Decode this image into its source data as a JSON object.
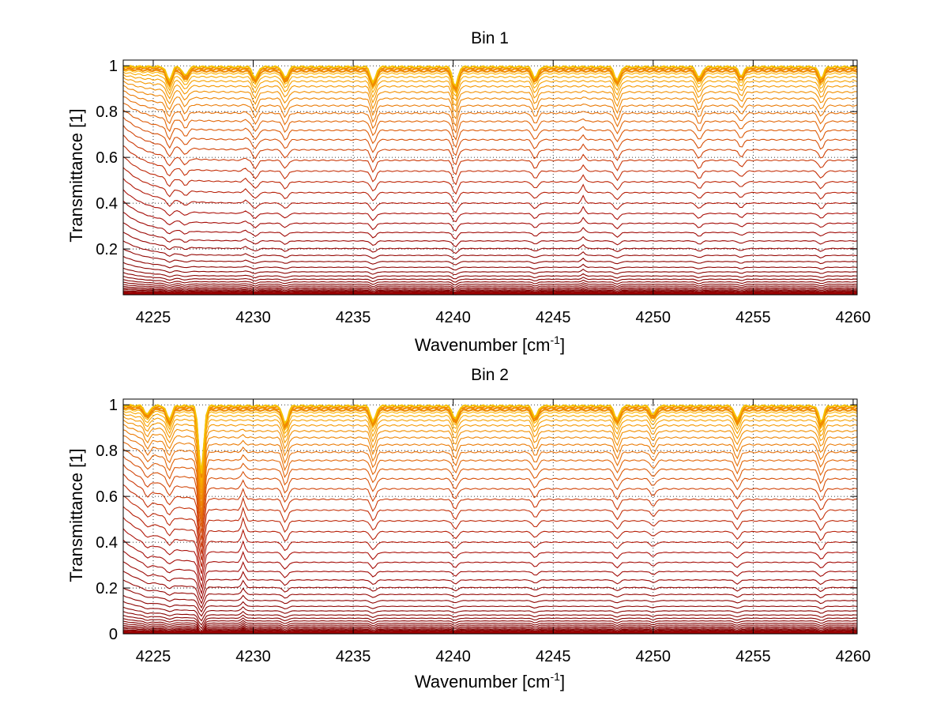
{
  "chart_data": [
    {
      "type": "line",
      "title": "Bin 1",
      "xlabel": "Wavenumber [cm",
      "xlabel_sup": "-1",
      "xlabel_end": "]",
      "ylabel": "Transmittance [1]",
      "xlim": [
        4223.5,
        4260.2
      ],
      "ylim": [
        0.0,
        1.025
      ],
      "xticks": [
        "4225",
        "4230",
        "4235",
        "4240",
        "4245",
        "4250",
        "4255",
        "4260"
      ],
      "yticks": [
        "0.2",
        "0.4",
        "0.6",
        "0.8",
        "1"
      ],
      "grid": "dotted",
      "n_series": 40,
      "levels": [
        0.002,
        0.004,
        0.006,
        0.009,
        0.012,
        0.016,
        0.02,
        0.025,
        0.031,
        0.038,
        0.046,
        0.056,
        0.068,
        0.082,
        0.1,
        0.12,
        0.145,
        0.172,
        0.202,
        0.235,
        0.272,
        0.312,
        0.355,
        0.4,
        0.446,
        0.493,
        0.54,
        0.587,
        0.633,
        0.677,
        0.718,
        0.757,
        0.793,
        0.826,
        0.857,
        0.885,
        0.91,
        0.932,
        0.951,
        0.966
      ],
      "absorption_lines": [
        {
          "x": 4225.8,
          "depth": 0.06
        },
        {
          "x": 4226.6,
          "depth": 0.04
        },
        {
          "x": 4230.1,
          "depth": 0.05
        },
        {
          "x": 4231.6,
          "depth": 0.05
        },
        {
          "x": 4236.0,
          "depth": 0.07
        },
        {
          "x": 4240.1,
          "depth": 0.09
        },
        {
          "x": 4244.1,
          "depth": 0.05
        },
        {
          "x": 4248.2,
          "depth": 0.06
        },
        {
          "x": 4252.3,
          "depth": 0.05
        },
        {
          "x": 4254.4,
          "depth": 0.04
        },
        {
          "x": 4258.4,
          "depth": 0.05
        }
      ],
      "emission_lines": [
        {
          "x": 4246.5,
          "height": 0.035
        },
        {
          "x": 4229.6,
          "height": 0.015
        }
      ]
    },
    {
      "type": "line",
      "title": "Bin 2",
      "xlabel": "Wavenumber [cm",
      "xlabel_sup": "-1",
      "xlabel_end": "]",
      "ylabel": "Transmittance [1]",
      "xlim": [
        4223.5,
        4260.2
      ],
      "ylim": [
        0.0,
        1.025
      ],
      "xticks": [
        "4225",
        "4230",
        "4235",
        "4240",
        "4245",
        "4250",
        "4255",
        "4260"
      ],
      "yticks": [
        "0",
        "0.2",
        "0.4",
        "0.6",
        "0.8",
        "1"
      ],
      "grid": "dotted",
      "n_series": 40,
      "levels": [
        0.002,
        0.004,
        0.006,
        0.009,
        0.012,
        0.016,
        0.02,
        0.025,
        0.031,
        0.038,
        0.046,
        0.056,
        0.068,
        0.082,
        0.1,
        0.12,
        0.145,
        0.172,
        0.202,
        0.235,
        0.272,
        0.312,
        0.355,
        0.4,
        0.446,
        0.493,
        0.54,
        0.587,
        0.633,
        0.677,
        0.718,
        0.757,
        0.793,
        0.826,
        0.857,
        0.885,
        0.91,
        0.932,
        0.951,
        0.966
      ],
      "absorption_lines": [
        {
          "x": 4224.7,
          "depth": 0.04
        },
        {
          "x": 4225.8,
          "depth": 0.06
        },
        {
          "x": 4227.4,
          "depth": 0.3
        },
        {
          "x": 4231.6,
          "depth": 0.08
        },
        {
          "x": 4236.0,
          "depth": 0.07
        },
        {
          "x": 4240.1,
          "depth": 0.06
        },
        {
          "x": 4244.1,
          "depth": 0.05
        },
        {
          "x": 4248.2,
          "depth": 0.06
        },
        {
          "x": 4250.0,
          "depth": 0.04
        },
        {
          "x": 4254.2,
          "depth": 0.06
        },
        {
          "x": 4258.4,
          "depth": 0.07
        }
      ],
      "emission_lines": [
        {
          "x": 4229.5,
          "height": 0.06
        }
      ]
    }
  ]
}
